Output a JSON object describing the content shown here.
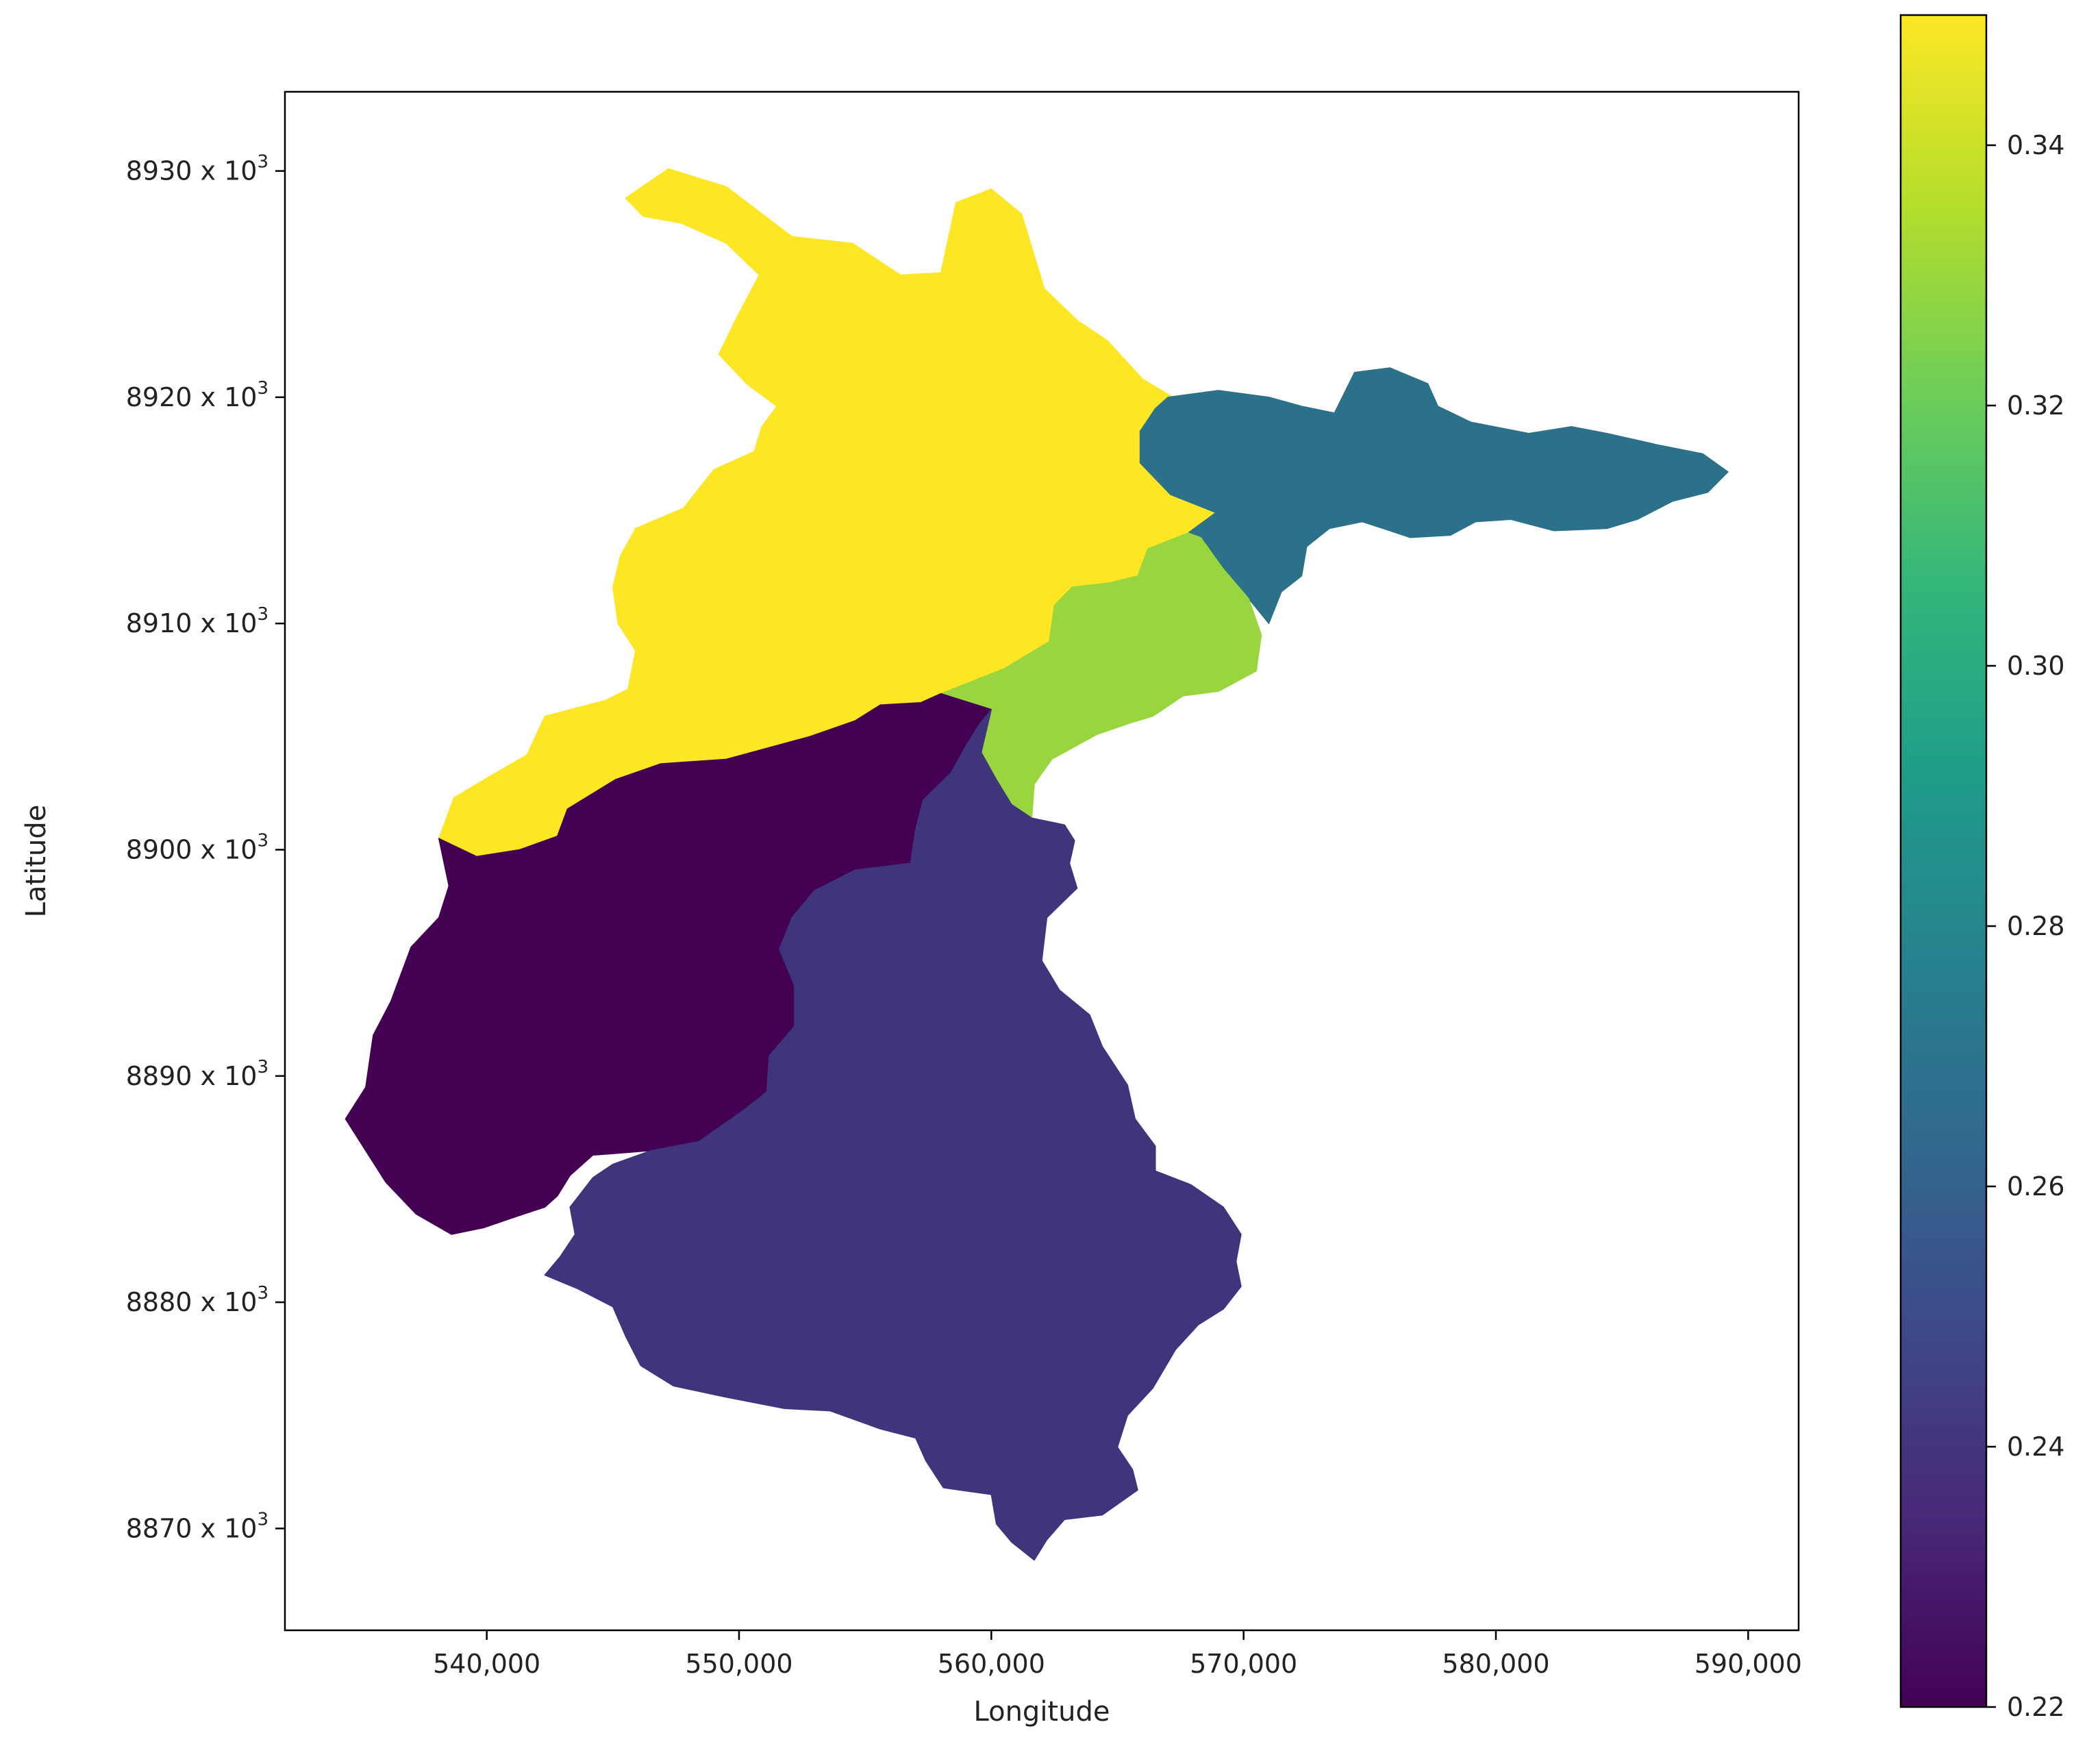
{
  "chart_data": {
    "type": "choropleth",
    "xlabel": "Longitude",
    "ylabel": "Latitude",
    "xlim": [
      532000,
      592000
    ],
    "ylim": [
      8865500,
      8933500
    ],
    "x_ticks": [
      540000,
      550000,
      560000,
      570000,
      580000,
      590000
    ],
    "x_tick_labels": [
      "540,000",
      "550,000",
      "560,000",
      "570,000",
      "580,000",
      "590,000"
    ],
    "y_ticks": [
      8870,
      8880,
      8890,
      8900,
      8910,
      8920,
      8930
    ],
    "y_tick_labels": [
      "8870 x 10",
      "8880 x 10",
      "8890 x 10",
      "8900 x 10",
      "8910 x 10",
      "8920 x 10",
      "8930 x 10"
    ],
    "y_tick_exponent": "3",
    "grid": false,
    "colormap": "viridis",
    "colorbar": {
      "min": 0.22,
      "max": 0.35,
      "ticks": [
        0.22,
        0.24,
        0.26,
        0.28,
        0.3,
        0.32,
        0.34
      ],
      "tick_labels": [
        "0.22",
        "0.24",
        "0.26",
        "0.28",
        "0.30",
        "0.32",
        "0.34"
      ],
      "stops": [
        "#440154",
        "#482878",
        "#3e4989",
        "#31688e",
        "#26828e",
        "#1f9e89",
        "#35b779",
        "#6ece58",
        "#b5de2b",
        "#fde725"
      ]
    },
    "regions": [
      {
        "id": "north",
        "value": 0.35,
        "color": "#fde725",
        "outline": [
          [
            545.5,
            8928.8
          ],
          [
            547.2,
            8930.1
          ],
          [
            549.5,
            8929.3
          ],
          [
            552.1,
            8927.1
          ],
          [
            554.5,
            8926.8
          ],
          [
            556.4,
            8925.4
          ],
          [
            558.0,
            8925.5
          ],
          [
            558.6,
            8928.6
          ],
          [
            560.0,
            8929.2
          ],
          [
            561.2,
            8928.1
          ],
          [
            562.1,
            8924.8
          ],
          [
            563.4,
            8923.4
          ],
          [
            564.6,
            8922.5
          ],
          [
            566.0,
            8920.8
          ],
          [
            567.2,
            8920.0
          ],
          [
            566.5,
            8919.5
          ],
          [
            565.9,
            8918.5
          ],
          [
            565.9,
            8917.1
          ],
          [
            567.1,
            8915.7
          ],
          [
            568.9,
            8914.9
          ],
          [
            567.8,
            8914.0
          ],
          [
            566.2,
            8913.3
          ],
          [
            565.8,
            8912.1
          ],
          [
            564.7,
            8911.8
          ],
          [
            563.2,
            8911.6
          ],
          [
            562.5,
            8910.8
          ],
          [
            562.3,
            8909.2
          ],
          [
            560.5,
            8908.0
          ],
          [
            558.0,
            8906.9
          ],
          [
            557.2,
            8906.5
          ],
          [
            555.6,
            8906.4
          ],
          [
            554.6,
            8905.7
          ],
          [
            552.8,
            8905.0
          ],
          [
            549.5,
            8904.0
          ],
          [
            546.9,
            8903.8
          ],
          [
            545.1,
            8903.1
          ],
          [
            543.2,
            8901.8
          ],
          [
            542.8,
            8900.6
          ],
          [
            541.3,
            8900.0
          ],
          [
            539.6,
            8899.7
          ],
          [
            538.1,
            8900.5
          ],
          [
            538.7,
            8902.3
          ],
          [
            539.9,
            8903.1
          ],
          [
            541.6,
            8904.2
          ],
          [
            542.3,
            8905.9
          ],
          [
            544.7,
            8906.6
          ],
          [
            545.6,
            8907.1
          ],
          [
            545.9,
            8908.8
          ],
          [
            545.2,
            8910.0
          ],
          [
            545.0,
            8911.6
          ],
          [
            545.3,
            8913.0
          ],
          [
            545.9,
            8914.2
          ],
          [
            547.8,
            8915.1
          ],
          [
            549.0,
            8916.8
          ],
          [
            550.6,
            8917.6
          ],
          [
            550.9,
            8918.7
          ],
          [
            551.5,
            8919.6
          ],
          [
            550.3,
            8920.6
          ],
          [
            549.2,
            8921.9
          ],
          [
            549.9,
            8923.5
          ],
          [
            550.8,
            8925.4
          ],
          [
            549.5,
            8926.8
          ],
          [
            547.7,
            8927.7
          ],
          [
            546.2,
            8928.0
          ],
          [
            545.5,
            8928.8
          ]
        ]
      },
      {
        "id": "northeast",
        "value": 0.27,
        "color": "#2b7189",
        "outline": [
          [
            567.0,
            8920.0
          ],
          [
            569.0,
            8920.3
          ],
          [
            571.0,
            8920.0
          ],
          [
            572.3,
            8919.6
          ],
          [
            573.6,
            8919.3
          ],
          [
            574.4,
            8921.1
          ],
          [
            575.8,
            8921.3
          ],
          [
            577.3,
            8920.6
          ],
          [
            577.7,
            8919.6
          ],
          [
            579.0,
            8918.9
          ],
          [
            581.3,
            8918.4
          ],
          [
            583.0,
            8918.7
          ],
          [
            584.4,
            8918.4
          ],
          [
            586.4,
            8917.9
          ],
          [
            588.2,
            8917.5
          ],
          [
            589.2,
            8916.7
          ],
          [
            588.4,
            8915.8
          ],
          [
            587.0,
            8915.4
          ],
          [
            585.6,
            8914.6
          ],
          [
            584.4,
            8914.2
          ],
          [
            582.3,
            8914.1
          ],
          [
            580.6,
            8914.6
          ],
          [
            579.2,
            8914.5
          ],
          [
            578.2,
            8913.9
          ],
          [
            576.6,
            8913.8
          ],
          [
            575.8,
            8914.1
          ],
          [
            574.7,
            8914.5
          ],
          [
            573.4,
            8914.2
          ],
          [
            572.5,
            8913.4
          ],
          [
            572.3,
            8912.1
          ],
          [
            571.5,
            8911.4
          ],
          [
            571.0,
            8910.0
          ],
          [
            570.2,
            8911.1
          ],
          [
            569.2,
            8912.4
          ],
          [
            568.3,
            8913.8
          ],
          [
            567.8,
            8914.0
          ],
          [
            568.9,
            8914.9
          ],
          [
            567.1,
            8915.7
          ],
          [
            565.9,
            8917.1
          ],
          [
            565.9,
            8918.5
          ],
          [
            566.5,
            8919.5
          ],
          [
            567.0,
            8920.0
          ]
        ]
      },
      {
        "id": "middle",
        "value": 0.33,
        "color": "#98d53f",
        "outline": [
          [
            558.0,
            8906.9
          ],
          [
            560.5,
            8908.0
          ],
          [
            562.3,
            8909.2
          ],
          [
            562.5,
            8910.8
          ],
          [
            563.2,
            8911.6
          ],
          [
            564.7,
            8911.8
          ],
          [
            565.8,
            8912.1
          ],
          [
            566.2,
            8913.3
          ],
          [
            567.8,
            8914.0
          ],
          [
            568.3,
            8913.8
          ],
          [
            569.2,
            8912.4
          ],
          [
            570.2,
            8911.1
          ],
          [
            570.7,
            8909.5
          ],
          [
            570.5,
            8907.9
          ],
          [
            569.0,
            8907.0
          ],
          [
            567.6,
            8906.8
          ],
          [
            566.4,
            8905.9
          ],
          [
            565.5,
            8905.6
          ],
          [
            564.2,
            8905.1
          ],
          [
            562.4,
            8904.0
          ],
          [
            561.7,
            8902.9
          ],
          [
            561.6,
            8901.4
          ],
          [
            561.0,
            8901.2
          ],
          [
            559.8,
            8901.7
          ],
          [
            559.5,
            8903.3
          ],
          [
            559.0,
            8904.6
          ],
          [
            558.5,
            8905.2
          ],
          [
            560.0,
            8906.2
          ],
          [
            558.0,
            8906.9
          ]
        ]
      },
      {
        "id": "southwest",
        "value": 0.22,
        "color": "#440154",
        "outline": [
          [
            538.1,
            8900.5
          ],
          [
            539.6,
            8899.7
          ],
          [
            541.3,
            8900.0
          ],
          [
            542.8,
            8900.6
          ],
          [
            543.2,
            8901.8
          ],
          [
            545.1,
            8903.1
          ],
          [
            546.9,
            8903.8
          ],
          [
            549.5,
            8904.0
          ],
          [
            552.8,
            8905.0
          ],
          [
            554.6,
            8905.7
          ],
          [
            555.6,
            8906.4
          ],
          [
            557.2,
            8906.5
          ],
          [
            558.0,
            8906.9
          ],
          [
            560.0,
            8906.2
          ],
          [
            559.5,
            8905.5
          ],
          [
            559.0,
            8904.6
          ],
          [
            558.4,
            8903.4
          ],
          [
            557.3,
            8902.2
          ],
          [
            557.0,
            8900.9
          ],
          [
            556.8,
            8899.4
          ],
          [
            554.6,
            8899.1
          ],
          [
            553.0,
            8898.2
          ],
          [
            552.1,
            8897.0
          ],
          [
            551.6,
            8895.6
          ],
          [
            552.2,
            8894.0
          ],
          [
            552.2,
            8892.2
          ],
          [
            551.2,
            8890.9
          ],
          [
            551.1,
            8889.3
          ],
          [
            550.2,
            8888.5
          ],
          [
            548.4,
            8887.1
          ],
          [
            546.5,
            8886.7
          ],
          [
            544.2,
            8886.5
          ],
          [
            543.3,
            8885.6
          ],
          [
            542.8,
            8884.7
          ],
          [
            542.3,
            8884.2
          ],
          [
            541.2,
            8883.8
          ],
          [
            539.9,
            8883.3
          ],
          [
            538.6,
            8883.0
          ],
          [
            537.2,
            8883.9
          ],
          [
            536.0,
            8885.3
          ],
          [
            534.4,
            8888.1
          ],
          [
            535.2,
            8889.5
          ],
          [
            535.5,
            8891.8
          ],
          [
            536.2,
            8893.3
          ],
          [
            537.0,
            8895.7
          ],
          [
            538.1,
            8897.0
          ],
          [
            538.5,
            8898.4
          ],
          [
            538.1,
            8900.5
          ]
        ]
      },
      {
        "id": "south",
        "value": 0.24,
        "color": "#3e357d",
        "outline": [
          [
            560.0,
            8906.2
          ],
          [
            559.5,
            8905.5
          ],
          [
            559.0,
            8904.6
          ],
          [
            558.4,
            8903.4
          ],
          [
            557.3,
            8902.2
          ],
          [
            557.0,
            8900.9
          ],
          [
            556.8,
            8899.4
          ],
          [
            554.6,
            8899.1
          ],
          [
            553.0,
            8898.2
          ],
          [
            552.1,
            8897.0
          ],
          [
            551.6,
            8895.6
          ],
          [
            552.2,
            8894.0
          ],
          [
            552.2,
            8892.2
          ],
          [
            551.2,
            8890.9
          ],
          [
            551.1,
            8889.3
          ],
          [
            550.2,
            8888.5
          ],
          [
            548.4,
            8887.1
          ],
          [
            546.5,
            8886.7
          ],
          [
            545.0,
            8886.1
          ],
          [
            544.2,
            8885.5
          ],
          [
            543.3,
            8884.2
          ],
          [
            543.5,
            8883.0
          ],
          [
            542.9,
            8882.0
          ],
          [
            542.3,
            8881.2
          ],
          [
            543.6,
            8880.6
          ],
          [
            545.0,
            8879.8
          ],
          [
            545.5,
            8878.5
          ],
          [
            546.1,
            8877.2
          ],
          [
            547.4,
            8876.3
          ],
          [
            549.5,
            8875.8
          ],
          [
            551.8,
            8875.3
          ],
          [
            553.6,
            8875.2
          ],
          [
            555.6,
            8874.4
          ],
          [
            557.0,
            8874.0
          ],
          [
            557.4,
            8873.0
          ],
          [
            558.1,
            8871.8
          ],
          [
            560.0,
            8871.5
          ],
          [
            560.2,
            8870.2
          ],
          [
            560.8,
            8869.4
          ],
          [
            561.7,
            8868.6
          ],
          [
            562.2,
            8869.5
          ],
          [
            562.9,
            8870.4
          ],
          [
            564.4,
            8870.6
          ],
          [
            565.8,
            8871.7
          ],
          [
            565.6,
            8872.6
          ],
          [
            565.0,
            8873.6
          ],
          [
            565.4,
            8875.0
          ],
          [
            566.4,
            8876.2
          ],
          [
            567.3,
            8877.9
          ],
          [
            568.2,
            8879.0
          ],
          [
            569.2,
            8879.7
          ],
          [
            569.9,
            8880.7
          ],
          [
            569.7,
            8881.8
          ],
          [
            569.9,
            8883.0
          ],
          [
            569.2,
            8884.2
          ],
          [
            567.9,
            8885.2
          ],
          [
            566.5,
            8885.8
          ],
          [
            566.5,
            8886.9
          ],
          [
            565.7,
            8888.1
          ],
          [
            565.4,
            8889.6
          ],
          [
            564.4,
            8891.3
          ],
          [
            563.9,
            8892.7
          ],
          [
            562.7,
            8893.8
          ],
          [
            562.0,
            8895.1
          ],
          [
            562.2,
            8897.0
          ],
          [
            563.4,
            8898.3
          ],
          [
            563.1,
            8899.4
          ],
          [
            563.3,
            8900.4
          ],
          [
            562.9,
            8901.1
          ],
          [
            561.6,
            8901.4
          ],
          [
            560.8,
            8902.0
          ],
          [
            560.2,
            8903.1
          ],
          [
            559.6,
            8904.3
          ],
          [
            560.0,
            8906.2
          ]
        ]
      }
    ]
  }
}
